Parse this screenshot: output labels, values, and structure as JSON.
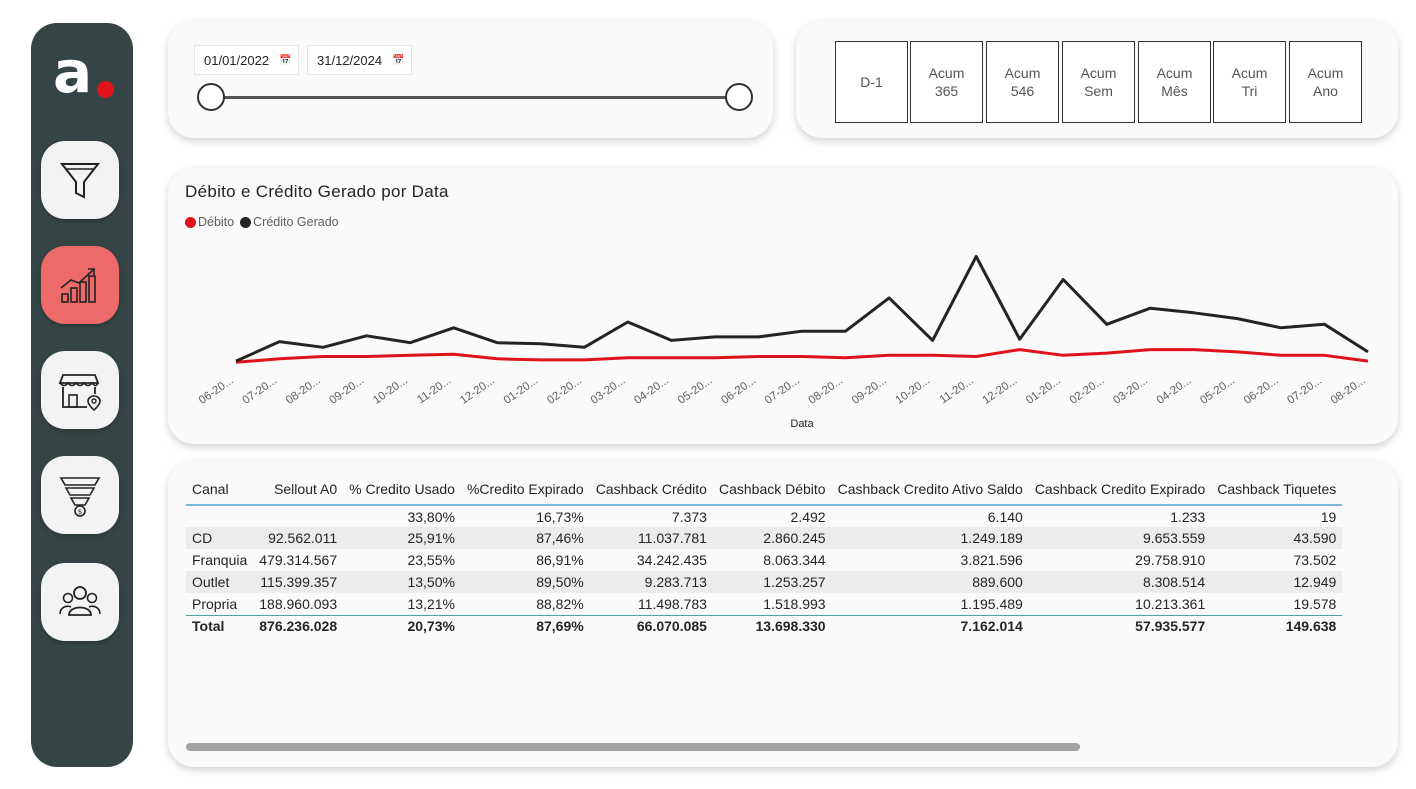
{
  "logo": {
    "letter": "a"
  },
  "nav": [
    {
      "name": "filter-icon"
    },
    {
      "name": "growth-chart-icon",
      "active": true
    },
    {
      "name": "store-location-icon"
    },
    {
      "name": "sales-funnel-icon"
    },
    {
      "name": "users-group-icon"
    }
  ],
  "date_filter": {
    "start": "01/01/2022",
    "end": "31/12/2024"
  },
  "periods": [
    "D-1",
    "Acum\n365",
    "Acum\n546",
    "Acum\nSem",
    "Acum\nMês",
    "Acum\nTri",
    "Acum\nAno"
  ],
  "chart_data": {
    "type": "line",
    "title": "Débito e Crédito Gerado por Data",
    "xlabel": "Data",
    "ylabel": "",
    "categories": [
      "06-20...",
      "07-20...",
      "08-20...",
      "09-20...",
      "10-20...",
      "11-20...",
      "12-20...",
      "01-20...",
      "02-20...",
      "03-20...",
      "04-20...",
      "05-20...",
      "06-20...",
      "07-20...",
      "08-20...",
      "09-20...",
      "10-20...",
      "11-20...",
      "12-20...",
      "01-20...",
      "02-20...",
      "03-20...",
      "04-20...",
      "05-20...",
      "06-20...",
      "07-20...",
      "08-20..."
    ],
    "legend_position": "top-left",
    "grid": false,
    "ylim": [
      0,
      100
    ],
    "series": [
      {
        "name": "Débito",
        "color": "#e0121a",
        "values": [
          5,
          8,
          10,
          10,
          11,
          12,
          8,
          7,
          7,
          9,
          9,
          9,
          10,
          10,
          9,
          11,
          11,
          10,
          16,
          11,
          13,
          16,
          16,
          14,
          11,
          11,
          6
        ]
      },
      {
        "name": "Crédito Gerado",
        "color": "#252423",
        "values": [
          6,
          23,
          18,
          28,
          22,
          35,
          22,
          21,
          18,
          40,
          24,
          27,
          27,
          32,
          32,
          61,
          24,
          97,
          25,
          77,
          38,
          52,
          48,
          43,
          35,
          38,
          14
        ]
      }
    ]
  },
  "table": {
    "headers": [
      "Canal",
      "Sellout A0",
      "% Credito Usado",
      "%Credito Expirado",
      "Cashback Crédito",
      "Cashback Débito",
      "Cashback Credito Ativo Saldo",
      "Cashback Credito Expirado",
      "Cashback Tiquetes"
    ],
    "rows": [
      [
        "",
        "",
        "33,80%",
        "16,73%",
        "7.373",
        "2.492",
        "6.140",
        "1.233",
        "19"
      ],
      [
        "CD",
        "92.562.011",
        "25,91%",
        "87,46%",
        "11.037.781",
        "2.860.245",
        "1.249.189",
        "9.653.559",
        "43.590"
      ],
      [
        "Franquia",
        "479.314.567",
        "23,55%",
        "86,91%",
        "34.242.435",
        "8.063.344",
        "3.821.596",
        "29.758.910",
        "73.502"
      ],
      [
        "Outlet",
        "115.399.357",
        "13,50%",
        "89,50%",
        "9.283.713",
        "1.253.257",
        "889.600",
        "8.308.514",
        "12.949"
      ],
      [
        "Propria",
        "188.960.093",
        "13,21%",
        "88,82%",
        "11.498.783",
        "1.518.993",
        "1.195.489",
        "10.213.361",
        "19.578"
      ]
    ],
    "total": [
      "Total",
      "876.236.028",
      "20,73%",
      "87,69%",
      "66.070.085",
      "13.698.330",
      "7.162.014",
      "57.935.577",
      "149.638"
    ]
  }
}
